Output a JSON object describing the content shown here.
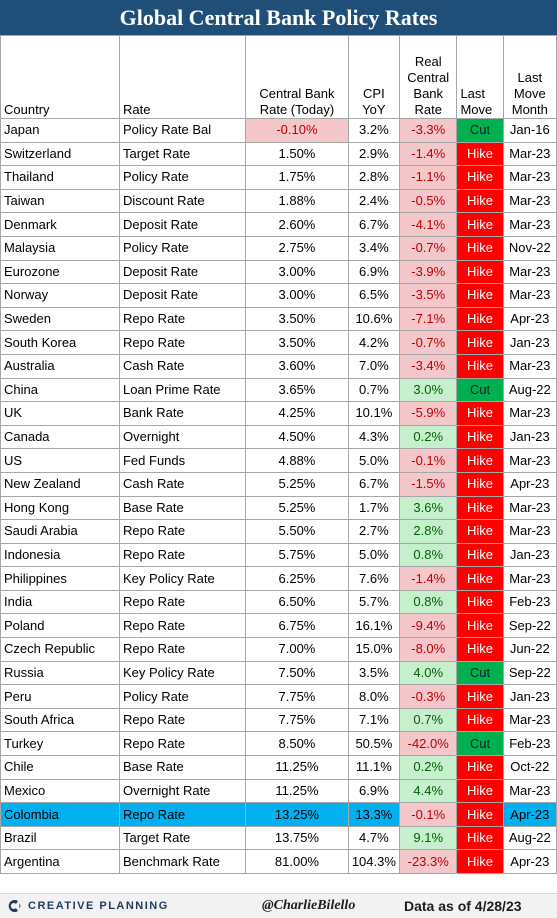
{
  "title": "Global Central Bank Policy Rates",
  "headers": {
    "country": "Country",
    "rate": "Rate",
    "cb_rate": [
      "Central Bank",
      "Rate (Today)"
    ],
    "cpi": [
      "CPI",
      "YoY"
    ],
    "real": [
      "Real",
      "Central",
      "Bank",
      "Rate"
    ],
    "last_move": [
      "Last",
      "Move"
    ],
    "last_move_month": [
      "Last",
      "Move",
      "Month"
    ]
  },
  "colors": {
    "header_bg": "#1f4e79",
    "hike": "#ff0000",
    "cut": "#00b050",
    "negative_fill": "#f4c7cb",
    "positive_fill": "#c6efce",
    "highlight": "#00b0f0"
  },
  "chart_data": {
    "type": "table",
    "title": "Global Central Bank Policy Rates",
    "columns": [
      "Country",
      "Rate",
      "Central Bank Rate (Today)",
      "CPI YoY",
      "Real Central Bank Rate",
      "Last Move",
      "Last Move Month"
    ],
    "highlighted_row": "Colombia",
    "rows": [
      [
        "Japan",
        "Policy Rate Bal",
        "-0.10%",
        "3.2%",
        "-3.3%",
        "Cut",
        "Jan-16"
      ],
      [
        "Switzerland",
        "Target Rate",
        "1.50%",
        "2.9%",
        "-1.4%",
        "Hike",
        "Mar-23"
      ],
      [
        "Thailand",
        "Policy Rate",
        "1.75%",
        "2.8%",
        "-1.1%",
        "Hike",
        "Mar-23"
      ],
      [
        "Taiwan",
        "Discount Rate",
        "1.88%",
        "2.4%",
        "-0.5%",
        "Hike",
        "Mar-23"
      ],
      [
        "Denmark",
        "Deposit Rate",
        "2.60%",
        "6.7%",
        "-4.1%",
        "Hike",
        "Mar-23"
      ],
      [
        "Malaysia",
        "Policy Rate",
        "2.75%",
        "3.4%",
        "-0.7%",
        "Hike",
        "Nov-22"
      ],
      [
        "Eurozone",
        "Deposit Rate",
        "3.00%",
        "6.9%",
        "-3.9%",
        "Hike",
        "Mar-23"
      ],
      [
        "Norway",
        "Deposit Rate",
        "3.00%",
        "6.5%",
        "-3.5%",
        "Hike",
        "Mar-23"
      ],
      [
        "Sweden",
        "Repo Rate",
        "3.50%",
        "10.6%",
        "-7.1%",
        "Hike",
        "Apr-23"
      ],
      [
        "South Korea",
        "Repo Rate",
        "3.50%",
        "4.2%",
        "-0.7%",
        "Hike",
        "Jan-23"
      ],
      [
        "Australia",
        "Cash Rate",
        "3.60%",
        "7.0%",
        "-3.4%",
        "Hike",
        "Mar-23"
      ],
      [
        "China",
        "Loan Prime Rate",
        "3.65%",
        "0.7%",
        "3.0%",
        "Cut",
        "Aug-22"
      ],
      [
        "UK",
        "Bank Rate",
        "4.25%",
        "10.1%",
        "-5.9%",
        "Hike",
        "Mar-23"
      ],
      [
        "Canada",
        "Overnight",
        "4.50%",
        "4.3%",
        "0.2%",
        "Hike",
        "Jan-23"
      ],
      [
        "US",
        "Fed Funds",
        "4.88%",
        "5.0%",
        "-0.1%",
        "Hike",
        "Mar-23"
      ],
      [
        "New Zealand",
        "Cash Rate",
        "5.25%",
        "6.7%",
        "-1.5%",
        "Hike",
        "Apr-23"
      ],
      [
        "Hong Kong",
        "Base Rate",
        "5.25%",
        "1.7%",
        "3.6%",
        "Hike",
        "Mar-23"
      ],
      [
        "Saudi Arabia",
        "Repo Rate",
        "5.50%",
        "2.7%",
        "2.8%",
        "Hike",
        "Mar-23"
      ],
      [
        "Indonesia",
        "Repo Rate",
        "5.75%",
        "5.0%",
        "0.8%",
        "Hike",
        "Jan-23"
      ],
      [
        "Philippines",
        "Key Policy Rate",
        "6.25%",
        "7.6%",
        "-1.4%",
        "Hike",
        "Mar-23"
      ],
      [
        "India",
        "Repo Rate",
        "6.50%",
        "5.7%",
        "0.8%",
        "Hike",
        "Feb-23"
      ],
      [
        "Poland",
        "Repo Rate",
        "6.75%",
        "16.1%",
        "-9.4%",
        "Hike",
        "Sep-22"
      ],
      [
        "Czech Republic",
        "Repo Rate",
        "7.00%",
        "15.0%",
        "-8.0%",
        "Hike",
        "Jun-22"
      ],
      [
        "Russia",
        "Key Policy Rate",
        "7.50%",
        "3.5%",
        "4.0%",
        "Cut",
        "Sep-22"
      ],
      [
        "Peru",
        "Policy Rate",
        "7.75%",
        "8.0%",
        "-0.3%",
        "Hike",
        "Jan-23"
      ],
      [
        "South Africa",
        "Repo Rate",
        "7.75%",
        "7.1%",
        "0.7%",
        "Hike",
        "Mar-23"
      ],
      [
        "Turkey",
        "Repo Rate",
        "8.50%",
        "50.5%",
        "-42.0%",
        "Cut",
        "Feb-23"
      ],
      [
        "Chile",
        "Base Rate",
        "11.25%",
        "11.1%",
        "0.2%",
        "Hike",
        "Oct-22"
      ],
      [
        "Mexico",
        "Overnight Rate",
        "11.25%",
        "6.9%",
        "4.4%",
        "Hike",
        "Mar-23"
      ],
      [
        "Colombia",
        "Repo Rate",
        "13.25%",
        "13.3%",
        "-0.1%",
        "Hike",
        "Apr-23"
      ],
      [
        "Brazil",
        "Target Rate",
        "13.75%",
        "4.7%",
        "9.1%",
        "Hike",
        "Aug-22"
      ],
      [
        "Argentina",
        "Benchmark Rate",
        "81.00%",
        "104.3%",
        "-23.3%",
        "Hike",
        "Apr-23"
      ]
    ]
  },
  "footer": {
    "brand": "CREATIVE PLANNING",
    "brand_icon": "creative-planning-logo",
    "handle": "@CharlieBilello",
    "as_of": "Data as of 4/28/23"
  }
}
